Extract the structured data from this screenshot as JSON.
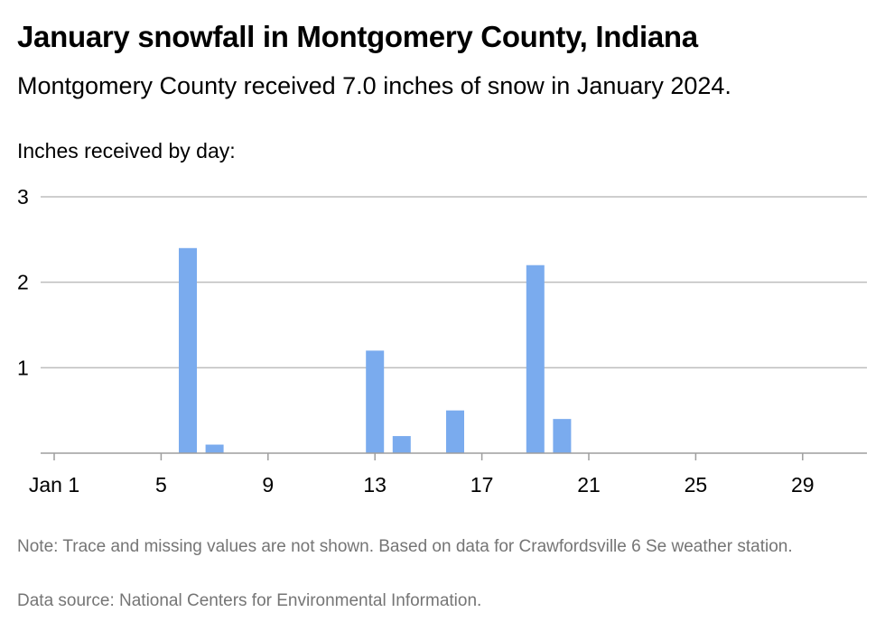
{
  "chart_data": {
    "type": "bar",
    "title": "January snowfall in Montgomery County, Indiana",
    "subtitle": "Montgomery County received 7.0 inches of snow in January 2024.",
    "ylabel": "Inches received by day:",
    "xlabel": "",
    "categories": [
      "Jan 1",
      "2",
      "3",
      "4",
      "5",
      "6",
      "7",
      "8",
      "9",
      "10",
      "11",
      "12",
      "13",
      "14",
      "15",
      "16",
      "17",
      "18",
      "19",
      "20",
      "21",
      "22",
      "23",
      "24",
      "25",
      "26",
      "27",
      "28",
      "29",
      "30",
      "31"
    ],
    "values": [
      0,
      0,
      0,
      0,
      0,
      2.4,
      0.1,
      0,
      0,
      0,
      0,
      0,
      1.2,
      0.2,
      0,
      0.5,
      0,
      0,
      2.2,
      0.4,
      0,
      0,
      0,
      0,
      0,
      0,
      0,
      0,
      0,
      0,
      0
    ],
    "ylim": [
      0,
      3
    ],
    "y_ticks": [
      "1",
      "2",
      "3"
    ],
    "x_ticks": [
      {
        "day": 1,
        "label": "Jan 1"
      },
      {
        "day": 5,
        "label": "5"
      },
      {
        "day": 9,
        "label": "9"
      },
      {
        "day": 13,
        "label": "13"
      },
      {
        "day": 17,
        "label": "17"
      },
      {
        "day": 21,
        "label": "21"
      },
      {
        "day": 25,
        "label": "25"
      },
      {
        "day": 29,
        "label": "29"
      }
    ],
    "grid": true,
    "bar_color": "#7aabee"
  },
  "note": "Note: Trace and missing values are not shown. Based on data for Crawfordsville 6 Se weather station.",
  "source": "Data source: National Centers for Environmental Information."
}
